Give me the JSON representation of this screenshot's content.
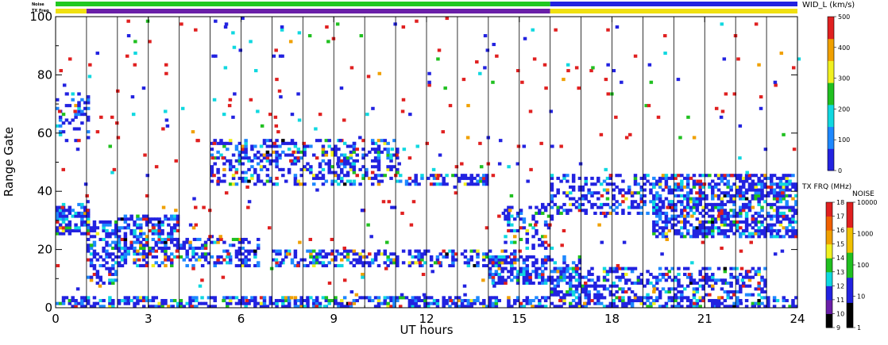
{
  "chart_data": {
    "type": "heatmap",
    "xlabel": "UT hours",
    "ylabel": "Range Gate",
    "xlim": [
      0,
      24
    ],
    "ylim": [
      0,
      100
    ],
    "x_ticks": [
      "0",
      "3",
      "6",
      "9",
      "12",
      "15",
      "18",
      "21",
      "24"
    ],
    "y_ticks": [
      "0",
      "20",
      "40",
      "60",
      "80",
      "100"
    ],
    "strip_labels": {
      "noise": "Noise",
      "txfreq": "TX Freq"
    },
    "noise_strip": {
      "segments": [
        [
          0,
          16,
          "#21c821"
        ],
        [
          16,
          24,
          "#2222e0"
        ]
      ]
    },
    "txfreq_strip": {
      "segments": [
        [
          0,
          1,
          "#f0e010"
        ],
        [
          1,
          16,
          "#6a1fa8"
        ],
        [
          16,
          24,
          "#f0e010"
        ]
      ]
    },
    "scan_boundaries_ut": [
      1.0,
      2.0,
      3.0,
      4.0,
      5.0,
      6.0,
      7.0,
      8.0,
      9.0,
      10.0,
      11.0,
      12.0,
      13.0,
      14.0,
      15.0,
      16.0,
      17.0,
      18.0,
      19.0,
      20.0,
      21.0,
      22.0,
      23.0
    ],
    "colorbars": [
      {
        "name": "wid",
        "title": "WID_L (km/s)",
        "range": [
          0,
          500
        ],
        "tick_labels": [
          "0",
          "100",
          "200",
          "300",
          "400",
          "500"
        ],
        "colors": [
          "#2222e0",
          "#1e88ff",
          "#10d8e0",
          "#20c020",
          "#f0f020",
          "#f0a000",
          "#e02020"
        ]
      },
      {
        "name": "txfreq",
        "title": "TX FRQ (MHz)",
        "tick_labels": [
          "9",
          "10",
          "11",
          "12",
          "13",
          "14",
          "15",
          "16",
          "17",
          "18"
        ],
        "colors": [
          "#000000",
          "#6a1fa8",
          "#2222e0",
          "#10d8e0",
          "#20c020",
          "#f0f020",
          "#f0a000",
          "#f06000",
          "#e02020"
        ]
      },
      {
        "name": "noise",
        "title": "NOISE",
        "tick_labels": [
          "1",
          "10",
          "100",
          "1000",
          "10000"
        ],
        "colors": [
          "#000000",
          "#2222e0",
          "#20c020",
          "#f0c000",
          "#e02020"
        ]
      }
    ],
    "bands": [
      {
        "x": [
          0.0,
          24.0
        ],
        "y": [
          0,
          4
        ],
        "density": 0.55
      },
      {
        "x": [
          0.0,
          1.0
        ],
        "y": [
          25,
          36
        ],
        "density": 0.55
      },
      {
        "x": [
          1.0,
          2.0
        ],
        "y": [
          8,
          30
        ],
        "density": 0.5
      },
      {
        "x": [
          2.0,
          4.0
        ],
        "y": [
          14,
          32
        ],
        "density": 0.55
      },
      {
        "x": [
          4.0,
          6.5
        ],
        "y": [
          14,
          24
        ],
        "density": 0.45
      },
      {
        "x": [
          7.0,
          15.0
        ],
        "y": [
          14,
          20
        ],
        "density": 0.45
      },
      {
        "x": [
          14.0,
          17.0
        ],
        "y": [
          8,
          18
        ],
        "density": 0.55
      },
      {
        "x": [
          16.0,
          23.0
        ],
        "y": [
          4,
          14
        ],
        "density": 0.4
      },
      {
        "x": [
          5.0,
          11.0
        ],
        "y": [
          42,
          58
        ],
        "density": 0.35
      },
      {
        "x": [
          11.0,
          14.0
        ],
        "y": [
          42,
          46
        ],
        "density": 0.35
      },
      {
        "x": [
          16.0,
          19.5
        ],
        "y": [
          32,
          46
        ],
        "density": 0.35
      },
      {
        "x": [
          19.3,
          24.0
        ],
        "y": [
          24,
          46
        ],
        "density": 0.6
      },
      {
        "x": [
          0.0,
          1.0
        ],
        "y": [
          56,
          74
        ],
        "density": 0.2
      },
      {
        "x": [
          14.5,
          16.0
        ],
        "y": [
          20,
          36
        ],
        "density": 0.3
      }
    ]
  }
}
